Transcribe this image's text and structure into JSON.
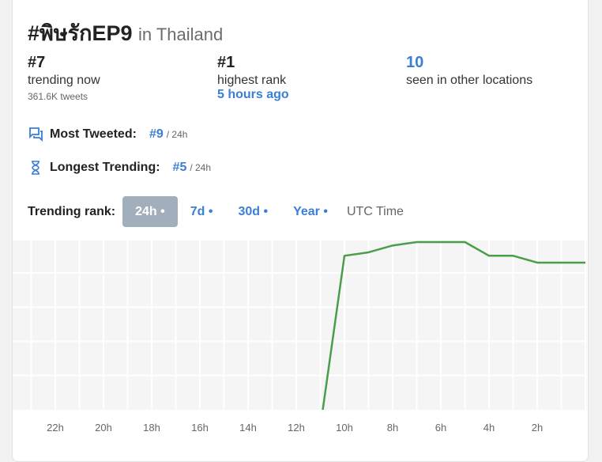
{
  "header": {
    "hashtag": "#พิษรักEP9",
    "location": "in Thailand"
  },
  "stats": [
    {
      "value": "#7",
      "label": "trending now",
      "sub": "361.6K tweets"
    },
    {
      "value": "#1",
      "label": "highest rank",
      "link": "5 hours ago"
    },
    {
      "value": "10",
      "label": "seen in other locations"
    }
  ],
  "most_tweeted": {
    "label": "Most Tweeted:",
    "rank": "#9",
    "period": "/ 24h",
    "icon": "chat-icon"
  },
  "longest_trending": {
    "label": "Longest Trending:",
    "rank": "#5",
    "period": "/ 24h",
    "icon": "hourglass-icon"
  },
  "range": {
    "label": "Trending rank:",
    "tabs": [
      "24h •",
      "7d •",
      "30d •",
      "Year •"
    ],
    "active": 0,
    "timezone": "UTC Time"
  },
  "colors": {
    "accent": "#3b7ed6",
    "line": "#4a9e4a",
    "chart_bg": "#f5f5f5"
  },
  "chart_data": {
    "type": "line",
    "x_unit": "hours ago",
    "xlim": [
      24,
      0
    ],
    "ylim": [
      1,
      50
    ],
    "y_inverted": true,
    "x_ticks": [
      "22h",
      "20h",
      "18h",
      "16h",
      "14h",
      "12h",
      "10h",
      "8h",
      "6h",
      "4h",
      "2h"
    ],
    "x_tick_values": [
      22,
      20,
      18,
      16,
      14,
      12,
      10,
      8,
      6,
      4,
      2
    ],
    "y_grid": [
      10,
      20,
      30,
      40
    ],
    "series": [
      {
        "name": "rank",
        "x": [
          10.9,
          10,
          9,
          8,
          7,
          5,
          4,
          3,
          2,
          0
        ],
        "y": [
          50,
          5,
          4,
          2,
          1,
          1,
          5,
          5,
          7,
          7
        ]
      }
    ]
  }
}
